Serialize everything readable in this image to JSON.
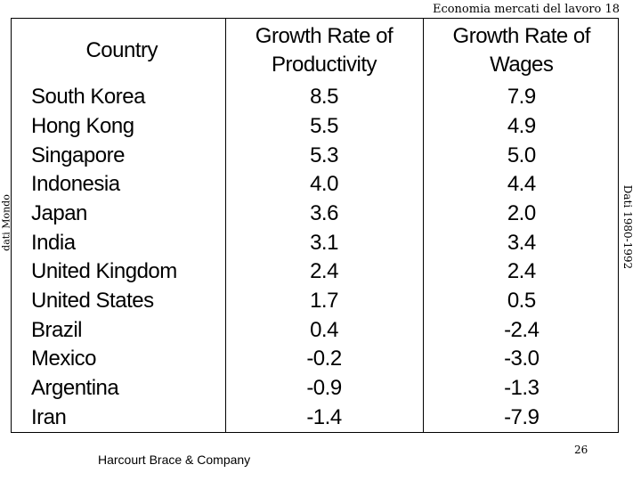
{
  "header": {
    "text": "Economia mercati del lavoro 18"
  },
  "side_left": {
    "text": "dati Mondo"
  },
  "side_right": {
    "text": "Dati 1980-1992"
  },
  "table": {
    "columns": [
      "Country",
      "Growth Rate of Productivity",
      "Growth Rate of Wages"
    ],
    "column_lines": [
      [
        "Country"
      ],
      [
        "Growth Rate of",
        "Productivity"
      ],
      [
        "Growth Rate of",
        "Wages"
      ]
    ],
    "rows": [
      [
        "South Korea",
        "8.5",
        "7.9"
      ],
      [
        "Hong Kong",
        "5.5",
        "4.9"
      ],
      [
        "Singapore",
        "5.3",
        "5.0"
      ],
      [
        "Indonesia",
        "4.0",
        "4.4"
      ],
      [
        "Japan",
        "3.6",
        "2.0"
      ],
      [
        "India",
        "3.1",
        "3.4"
      ],
      [
        "United Kingdom",
        "2.4",
        "2.4"
      ],
      [
        "United States",
        "1.7",
        "0.5"
      ],
      [
        "Brazil",
        "0.4",
        "-2.4"
      ],
      [
        "Mexico",
        "-0.2",
        "-3.0"
      ],
      [
        "Argentina",
        "-0.9",
        "-1.3"
      ],
      [
        "Iran",
        "-1.4",
        "-7.9"
      ]
    ]
  },
  "footer": {
    "publisher": "Harcourt Brace & Company",
    "page_number": "26"
  }
}
